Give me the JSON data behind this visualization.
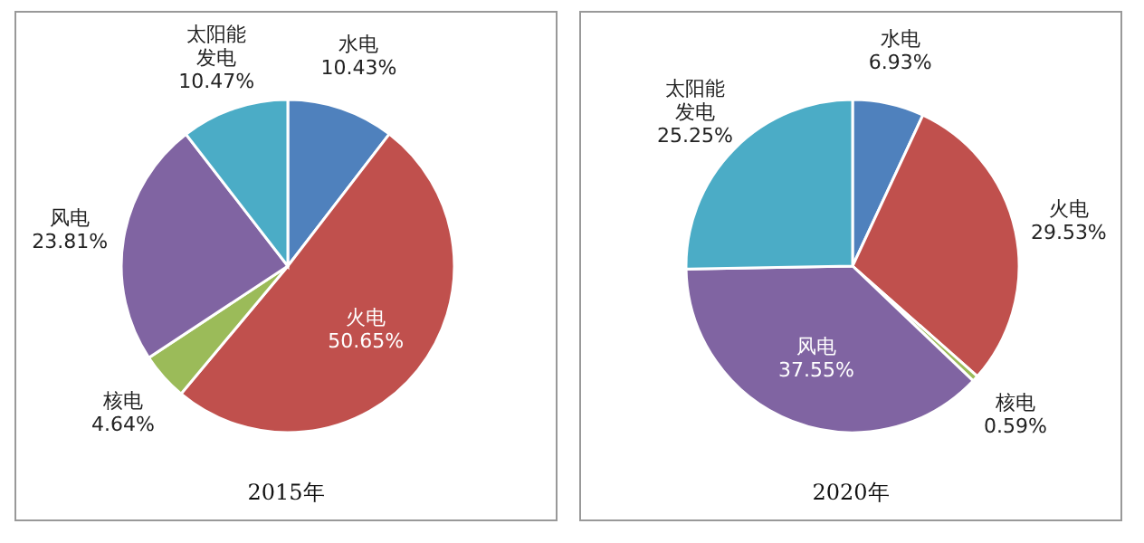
{
  "chart_data": [
    {
      "type": "pie",
      "title": "2015年",
      "categories": [
        "水电",
        "火电",
        "核电",
        "风电",
        "太阳能发电"
      ],
      "values": [
        10.43,
        50.65,
        4.64,
        23.81,
        10.47
      ],
      "value_labels": [
        "10.43%",
        "50.65%",
        "4.64%",
        "23.81%",
        "10.47%"
      ],
      "colors": [
        "#4f81bd",
        "#c0504d",
        "#9bbb59",
        "#8064a2",
        "#4bacc6"
      ]
    },
    {
      "type": "pie",
      "title": "2020年",
      "categories": [
        "水电",
        "火电",
        "核电",
        "风电",
        "太阳能发电"
      ],
      "values": [
        6.93,
        29.53,
        0.59,
        37.55,
        25.25
      ],
      "value_labels": [
        "6.93%",
        "29.53%",
        "0.59%",
        "37.55%",
        "25.25%"
      ],
      "colors": [
        "#4f81bd",
        "#c0504d",
        "#9bbb59",
        "#8064a2",
        "#4bacc6"
      ]
    }
  ]
}
